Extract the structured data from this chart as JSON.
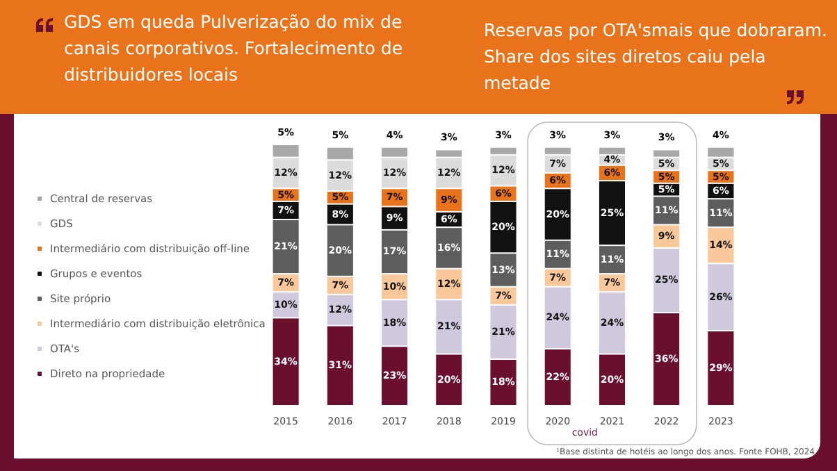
{
  "chart_data": {
    "type": "bar",
    "stacked": true,
    "legend": "left",
    "title": "GDS em queda Pulverização do mix de canais corporativos. Fortalecimento de distribuidores locais",
    "subtitle": "Reservas por OTA'smais que dobraram. Share dos sites diretos caiu pela metade",
    "annotations": [
      "covid",
      "¹Base distinta de hotéis ao longo dos anos. Fonte FOHB, 2024"
    ],
    "categories": [
      "2015",
      "2016",
      "2017",
      "2018",
      "2019",
      "2020",
      "2021",
      "2022",
      "2023"
    ],
    "series": [
      {
        "name": "Direto na propriedade",
        "color": "#6b0f2e",
        "values": [
          34,
          31,
          23,
          20,
          18,
          22,
          20,
          36,
          29
        ],
        "value_labels": [
          "34%",
          "31%",
          "23%",
          "20%",
          "18%",
          "22%",
          "20%",
          "36%",
          "29%"
        ]
      },
      {
        "name": "OTA's",
        "color": "#d0c8dc",
        "values": [
          10,
          12,
          18,
          21,
          21,
          24,
          24,
          25,
          26
        ],
        "value_labels": [
          "10%",
          "12%",
          "18%",
          "21%",
          "21%",
          "24%",
          "24%",
          "25%",
          "26%"
        ]
      },
      {
        "name": "Intermediário com distribuição eletrônica",
        "color": "#f8c79a",
        "values": [
          7,
          7,
          10,
          12,
          7,
          7,
          7,
          9,
          14
        ],
        "value_labels": [
          "7%",
          "7%",
          "10%",
          "12%",
          "7%",
          "7%",
          "7%",
          "9%",
          "14%"
        ]
      },
      {
        "name": "Site próprio",
        "color": "#5d5d5d",
        "values": [
          21,
          20,
          17,
          16,
          13,
          11,
          11,
          11,
          11
        ],
        "value_labels": [
          "21%",
          "20%",
          "17%",
          "16%",
          "13%",
          "11%",
          "11%",
          "11%",
          "11%"
        ]
      },
      {
        "name": "Grupos e eventos",
        "color": "#111111",
        "values": [
          7,
          8,
          9,
          6,
          20,
          20,
          25,
          5,
          6
        ],
        "value_labels": [
          "7%",
          "8%",
          "9%",
          "6%",
          "20%",
          "20%",
          "25%",
          "5%",
          "6%"
        ]
      },
      {
        "name": "Intermediário com distribuição off-line",
        "color": "#e8731b",
        "values": [
          5,
          5,
          7,
          9,
          6,
          6,
          6,
          5,
          5
        ],
        "value_labels": [
          "5%",
          "5%",
          "7%",
          "9%",
          "6%",
          "6%",
          "6%",
          "5%",
          "5%"
        ]
      },
      {
        "name": "GDS",
        "color": "#dcdcdc",
        "values": [
          12,
          12,
          12,
          12,
          12,
          7,
          4,
          5,
          5
        ],
        "value_labels": [
          "12%",
          "12%",
          "12%",
          "12%",
          "12%",
          "7%",
          "4%",
          "5%",
          "5%"
        ]
      },
      {
        "name": "Central de reservas",
        "color": "#a8a8a8",
        "values": [
          5,
          5,
          4,
          3,
          3,
          3,
          3,
          3,
          4
        ],
        "value_labels": [
          "5%",
          "5%",
          "4%",
          "3%",
          "3%",
          "3%",
          "3%",
          "3%",
          "4%"
        ]
      }
    ]
  }
}
